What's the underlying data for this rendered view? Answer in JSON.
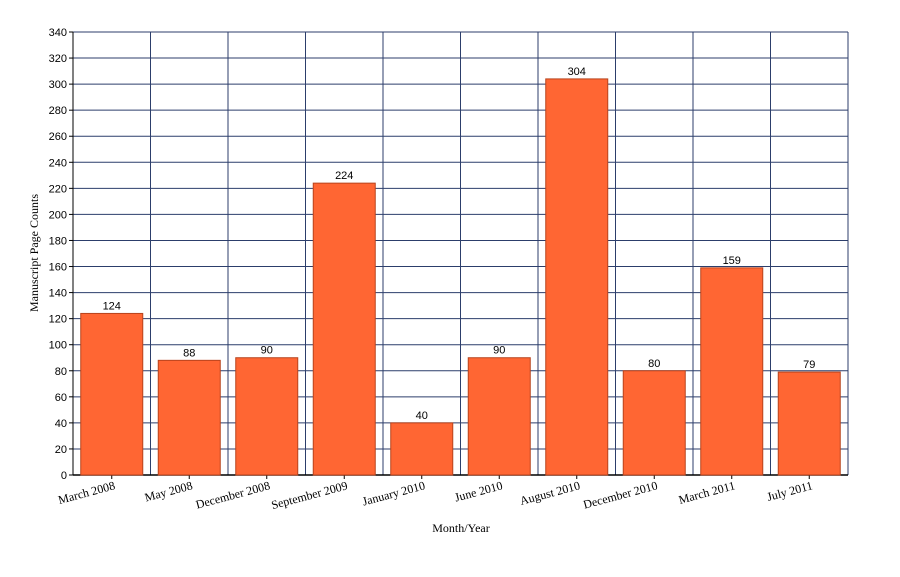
{
  "chart_data": {
    "type": "bar",
    "x_label": "Month/Year",
    "y_label": "Manuscript Page Counts",
    "categories": [
      "March 2008",
      "May 2008",
      "December 2008",
      "September 2009",
      "January 2010",
      "June 2010",
      "August 2010",
      "December 2010",
      "March 2011",
      "July 2011"
    ],
    "values": [
      124,
      88,
      90,
      224,
      40,
      90,
      304,
      80,
      159,
      79
    ],
    "color": "#ff6633",
    "ylim": [
      0,
      340
    ],
    "yticks": [
      0,
      20,
      40,
      60,
      80,
      100,
      120,
      140,
      160,
      180,
      200,
      220,
      240,
      260,
      280,
      300,
      320,
      340
    ],
    "grid": true
  }
}
